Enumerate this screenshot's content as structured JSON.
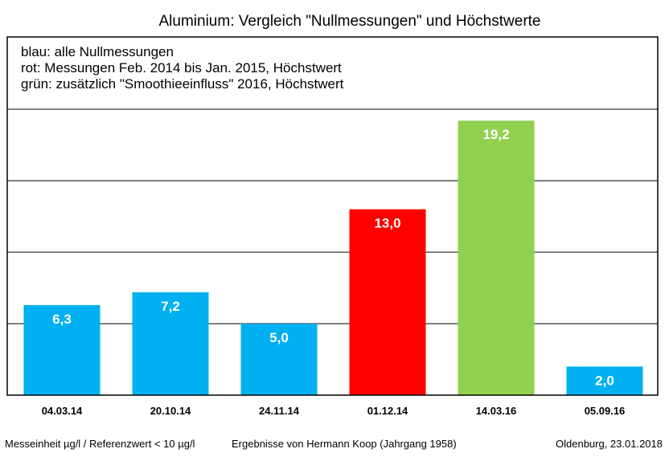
{
  "chart_data": {
    "type": "bar",
    "title": "Aluminium: Vergleich \"Nullmessungen\" und Höchstwerte",
    "legend_lines": [
      "blau: alle Nullmessungen",
      "rot: Messungen Feb. 2014 bis Jan. 2015, Höchstwert",
      "grün: zusätzlich \"Smoothieeinfluss\" 2016, Höchstwert"
    ],
    "categories": [
      "04.03.14",
      "20.10.14",
      "24.11.14",
      "01.12.14",
      "14.03.16",
      "05.09.16"
    ],
    "values": [
      6.3,
      7.2,
      5.0,
      13.0,
      19.2,
      2.0
    ],
    "labels": [
      "6,3",
      "7,2",
      "5,0",
      "13,0",
      "19,2",
      "2,0"
    ],
    "colors": [
      "#00b0f0",
      "#00b0f0",
      "#00b0f0",
      "#ff0000",
      "#92d050",
      "#00b0f0"
    ],
    "ylim": [
      0,
      20
    ],
    "gridlines": [
      5,
      10,
      15,
      20
    ],
    "xlabel": "",
    "ylabel": ""
  },
  "footer": {
    "left": "Messeinheit µg/l / Referenzwert < 10 µg/l",
    "center": "Ergebnisse von Hermann Koop (Jahrgang 1958)",
    "right": "Oldenburg, 23.01.2018"
  }
}
